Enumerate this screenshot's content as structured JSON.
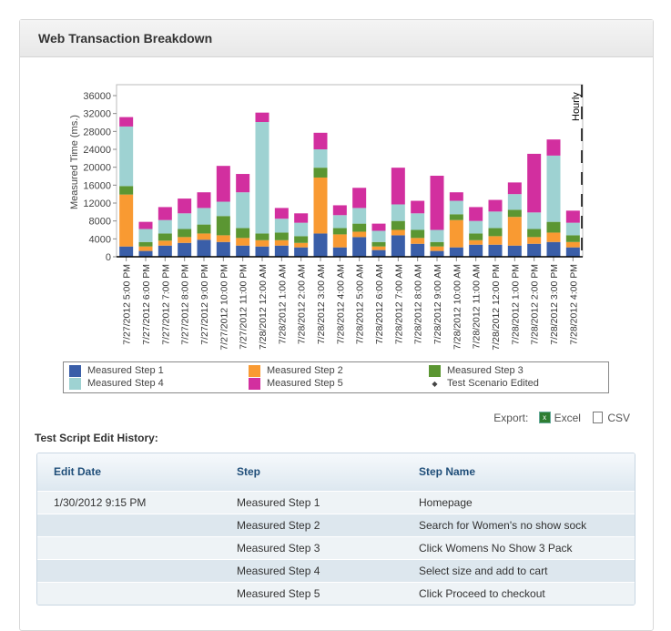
{
  "panel": {
    "title": "Web Transaction Breakdown"
  },
  "chart_data": {
    "type": "bar",
    "stacked": true,
    "ylabel": "Measured Time (ms.)",
    "ylim": [
      0,
      36000
    ],
    "yticks": [
      0,
      4000,
      8000,
      12000,
      16000,
      20000,
      24000,
      28000,
      32000,
      36000
    ],
    "interval_label": "Hourly",
    "grid": false,
    "legend_position": "bottom",
    "categories": [
      "7/27/2012 5:00 PM",
      "7/27/2012 6:00 PM",
      "7/27/2012 7:00 PM",
      "7/27/2012 8:00 PM",
      "7/27/2012 9:00 PM",
      "7/27/2012 10:00 PM",
      "7/27/2012 11:00 PM",
      "7/28/2012 12:00 AM",
      "7/28/2012 1:00 AM",
      "7/28/2012 2:00 AM",
      "7/28/2012 3:00 AM",
      "7/28/2012 4:00 AM",
      "7/28/2012 5:00 AM",
      "7/28/2012 6:00 AM",
      "7/28/2012 7:00 AM",
      "7/28/2012 8:00 AM",
      "7/28/2012 9:00 AM",
      "7/28/2012 10:00 AM",
      "7/28/2012 11:00 AM",
      "7/28/2012 12:00 PM",
      "7/28/2012 1:00 PM",
      "7/28/2012 2:00 PM",
      "7/28/2012 3:00 PM",
      "7/28/2012 4:00 PM"
    ],
    "series": [
      {
        "name": "Measured Step 1",
        "color": "#3a5ea8",
        "values": [
          2300,
          1300,
          2500,
          3100,
          3800,
          3300,
          2500,
          2300,
          2500,
          2100,
          5200,
          2100,
          4400,
          1500,
          4800,
          2900,
          1300,
          2100,
          2700,
          2700,
          2500,
          2900,
          3300,
          2100
        ]
      },
      {
        "name": "Measured Step 2",
        "color": "#f99a32",
        "values": [
          11600,
          1000,
          1100,
          1300,
          1400,
          1500,
          1700,
          1400,
          1200,
          1000,
          12500,
          2900,
          1200,
          800,
          1200,
          1300,
          1000,
          6100,
          1000,
          1900,
          6400,
          1500,
          2100,
          1200
        ]
      },
      {
        "name": "Measured Step 3",
        "color": "#5b9632",
        "values": [
          1900,
          1000,
          1600,
          1800,
          2000,
          4300,
          2200,
          1500,
          1700,
          1500,
          2200,
          1400,
          1800,
          1000,
          2000,
          1800,
          1000,
          1300,
          1500,
          1800,
          1600,
          1800,
          2400,
          1500
        ]
      },
      {
        "name": "Measured Step 4",
        "color": "#9ed2d2",
        "values": [
          13300,
          2900,
          3000,
          3500,
          3700,
          3200,
          8000,
          24900,
          3100,
          3000,
          4100,
          2900,
          3500,
          2500,
          3700,
          3700,
          2700,
          3000,
          2800,
          3700,
          3500,
          3700,
          14800,
          2800
        ]
      },
      {
        "name": "Measured Step 5",
        "color": "#d22f9f",
        "values": [
          2100,
          1600,
          2900,
          3300,
          3500,
          8000,
          4100,
          2100,
          2400,
          2100,
          3700,
          2200,
          4500,
          1600,
          8200,
          2800,
          12100,
          1900,
          3100,
          2600,
          2600,
          13100,
          3600,
          2700
        ]
      }
    ],
    "markers": {
      "name": "Test Scenario Edited",
      "symbol": "diamond"
    }
  },
  "export": {
    "label": "Export:",
    "excel": "Excel",
    "csv": "CSV"
  },
  "history": {
    "title": "Test Script Edit History:",
    "columns": [
      "Edit Date",
      "Step",
      "Step Name"
    ],
    "rows": [
      [
        "1/30/2012 9:15 PM",
        "Measured Step 1",
        "Homepage"
      ],
      [
        "",
        "Measured Step 2",
        "Search for Women's no show sock"
      ],
      [
        "",
        "Measured Step 3",
        "Click Womens No Show 3 Pack"
      ],
      [
        "",
        "Measured Step 4",
        "Select size and add to cart"
      ],
      [
        "",
        "Measured Step 5",
        "Click Proceed to checkout"
      ]
    ]
  }
}
